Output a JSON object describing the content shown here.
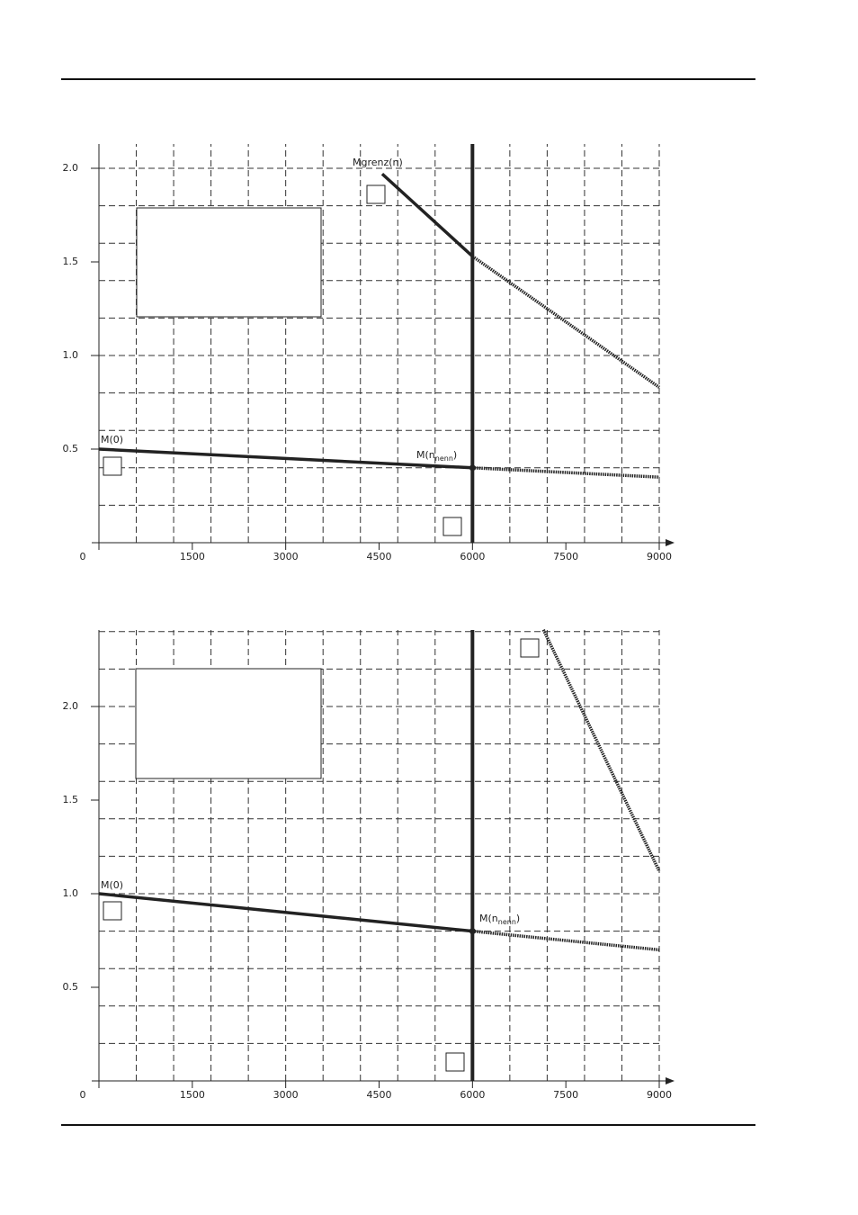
{
  "chart_data": [
    {
      "type": "line",
      "xlim": [
        0,
        9000
      ],
      "ylim": [
        0,
        2.13
      ],
      "xticks": [
        0,
        1500,
        3000,
        4500,
        6000,
        7500,
        9000
      ],
      "yticks": [
        {
          "value": 0.5,
          "label": "0.5"
        },
        {
          "value": 1,
          "label": "1.0"
        },
        {
          "value": 1.5,
          "label": "1.5"
        },
        {
          "value": 2,
          "label": "2.0"
        }
      ],
      "grid": true,
      "xgrid": [
        600,
        1200,
        1800,
        2400,
        3000,
        3600,
        4200,
        4800,
        5400,
        6600,
        7200,
        7800,
        8400,
        9000
      ],
      "ygrid": [
        0.2,
        0.4,
        0.6,
        0.8,
        1.0,
        1.2,
        1.4,
        1.6,
        1.8,
        2.0
      ],
      "vline": 6000,
      "color": "#222",
      "series": [
        {
          "x": [
            0,
            6000
          ],
          "values": [
            0.5,
            0.4
          ],
          "style": "solid"
        },
        {
          "x": [
            6000,
            9000
          ],
          "values": [
            0.4,
            0.35
          ],
          "style": "dotted"
        },
        {
          "x": [
            4550,
            6000
          ],
          "values": [
            1.97,
            1.53
          ],
          "style": "solid"
        },
        {
          "x": [
            6000,
            9000
          ],
          "values": [
            1.53,
            0.83
          ],
          "style": "dotted"
        }
      ],
      "point": {
        "x": 6000,
        "y": 0.4
      },
      "annotations": [
        {
          "text": "Mgrenz(n)"
        },
        {
          "text": "M(0)"
        },
        {
          "text": "M(n",
          "sub": "nenn",
          "end": ")"
        }
      ]
    },
    {
      "type": "line",
      "xlim": [
        0,
        9000
      ],
      "ylim": [
        0,
        2.4
      ],
      "xticks": [
        0,
        1500,
        3000,
        4500,
        6000,
        7500,
        9000
      ],
      "yticks": [
        {
          "value": 0.5,
          "label": "0.5"
        },
        {
          "value": 1,
          "label": "1.0"
        },
        {
          "value": 1.5,
          "label": "1.5"
        },
        {
          "value": 2,
          "label": "2.0"
        }
      ],
      "grid": true,
      "xgrid": [
        600,
        1200,
        1800,
        2400,
        3000,
        3600,
        4200,
        4800,
        5400,
        6600,
        7200,
        7800,
        8400,
        9000
      ],
      "ygrid": [
        0.2,
        0.4,
        0.6,
        0.8,
        1.0,
        1.2,
        1.4,
        1.6,
        1.8,
        2.0,
        2.2,
        2.4
      ],
      "vline": 6000,
      "color": "#222",
      "series": [
        {
          "x": [
            0,
            6000
          ],
          "values": [
            1.0,
            0.8
          ],
          "style": "solid"
        },
        {
          "x": [
            6000,
            9000
          ],
          "values": [
            0.8,
            0.7
          ],
          "style": "dotted"
        },
        {
          "x": [
            7140,
            9000
          ],
          "values": [
            2.41,
            1.12
          ],
          "style": "dotted"
        }
      ],
      "point": {
        "x": 6000,
        "y": 0.8
      },
      "annotations": [
        {
          "text": "M(0)"
        },
        {
          "text": "M(n",
          "sub": "nenn",
          "end": ")"
        }
      ]
    }
  ]
}
